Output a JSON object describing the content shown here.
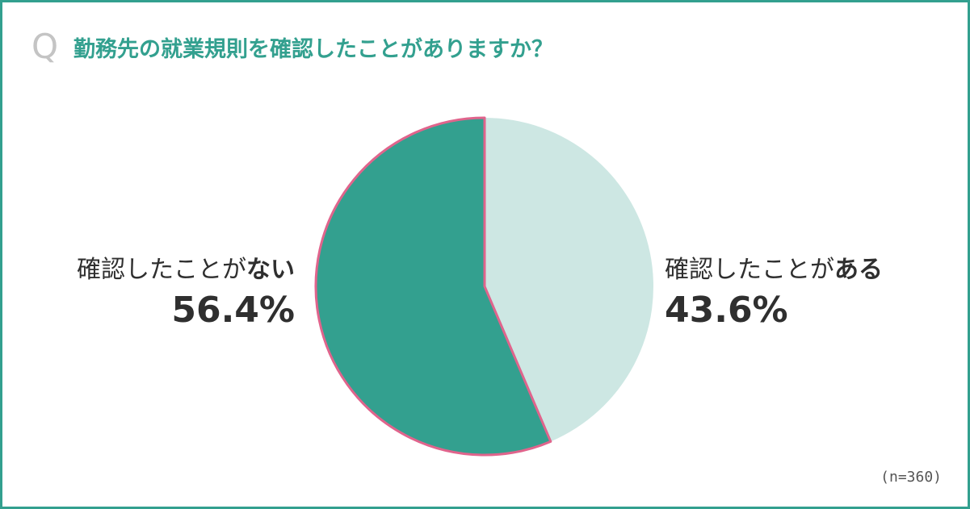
{
  "question": {
    "marker": "Q",
    "text": "勤務先の就業規則を確認したことがありますか？"
  },
  "sample_size": "(n=360)",
  "labels": {
    "no": {
      "prefix": "確認したことが",
      "emphasis": "ない",
      "percent": "56.4%"
    },
    "yes": {
      "prefix": "確認したことが",
      "emphasis": "ある",
      "percent": "43.6%"
    }
  },
  "colors": {
    "border": "#33a08f",
    "title": "#33a08f",
    "slice_no": "#33a08f",
    "slice_yes": "#cde7e3",
    "slice_outline": "#e0648c"
  },
  "chart_data": {
    "type": "pie",
    "title": "勤務先の就業規則を確認したことがありますか？",
    "slices": [
      {
        "label": "確認したことがある",
        "value": 43.6
      },
      {
        "label": "確認したことがない",
        "value": 56.4
      }
    ],
    "start_angle": "12 o'clock",
    "direction": "clockwise",
    "n": 360
  }
}
